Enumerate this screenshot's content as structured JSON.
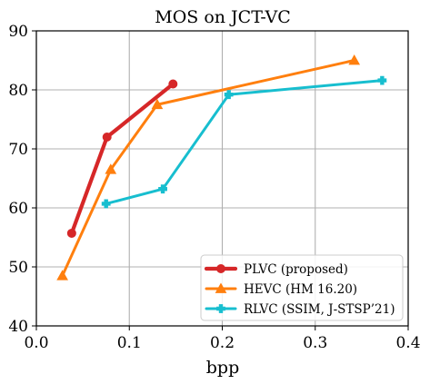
{
  "chart_data": {
    "type": "line",
    "title": "MOS on JCT-VC",
    "xlabel": "bpp",
    "ylabel": "",
    "xlim": [
      0.0,
      0.4
    ],
    "ylim": [
      40,
      90
    ],
    "xticks": [
      "0.0",
      "0.1",
      "0.2",
      "0.3",
      "0.4"
    ],
    "yticks": [
      "40",
      "50",
      "60",
      "70",
      "80",
      "90"
    ],
    "grid": true,
    "legend_position": "bottom-right",
    "series": [
      {
        "name": "PLVC (proposed)",
        "color": "#d62728",
        "marker": "circle",
        "x": [
          0.038,
          0.076,
          0.147
        ],
        "y": [
          55.7,
          72.0,
          81.0
        ]
      },
      {
        "name": "HEVC (HM 16.20)",
        "color": "#ff7f0e",
        "marker": "triangle",
        "x": [
          0.028,
          0.08,
          0.13,
          0.342
        ],
        "y": [
          48.5,
          66.5,
          77.5,
          85.0
        ]
      },
      {
        "name": "RLVC (SSIM, J-STSP’21)",
        "color": "#17becf",
        "marker": "plus",
        "x": [
          0.075,
          0.136,
          0.207,
          0.372
        ],
        "y": [
          60.7,
          63.2,
          79.2,
          81.6
        ]
      }
    ]
  }
}
